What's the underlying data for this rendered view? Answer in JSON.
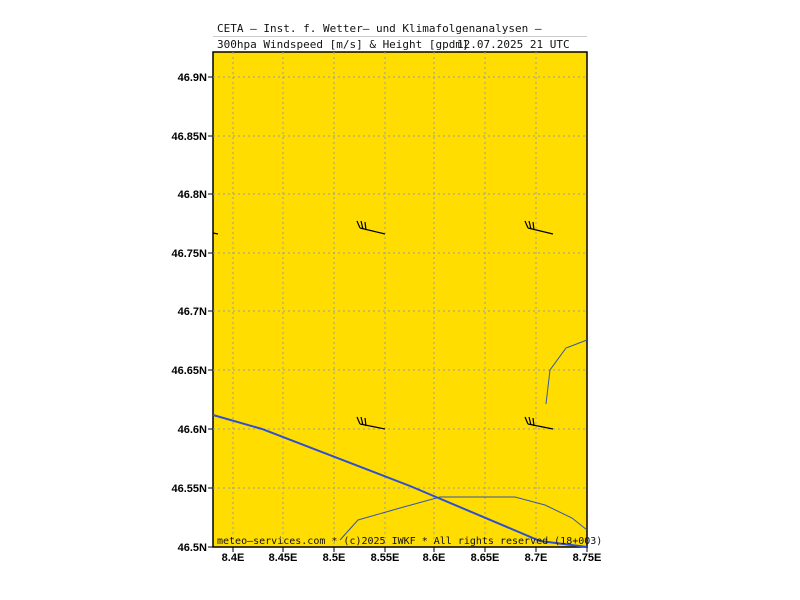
{
  "header": {
    "title_line1": "CETA — Inst. f. Wetter— und Klimafolgenanalysen —",
    "title_line2": "300hpa Windspeed [m/s] & Height [gpdm]",
    "valid_time": "12.07.2025 21 UTC"
  },
  "map": {
    "background_color": "#FFDD00",
    "grid": "dotted",
    "grid_color": "#9a9aaa",
    "lat_labels": [
      "46.9N",
      "46.85N",
      "46.8N",
      "46.75N",
      "46.7N",
      "46.65N",
      "46.6N",
      "46.55N",
      "46.5N"
    ],
    "lon_labels": [
      "8.4E",
      "8.45E",
      "8.5E",
      "8.55E",
      "8.6E",
      "8.65E",
      "8.7E",
      "8.75E"
    ],
    "footer": "meteo—services.com * (c)2025 IWKF * All rights reserved (18+003)",
    "features": [
      "height-contour-line",
      "border-line",
      "lake-outline",
      "wind-barbs"
    ]
  }
}
